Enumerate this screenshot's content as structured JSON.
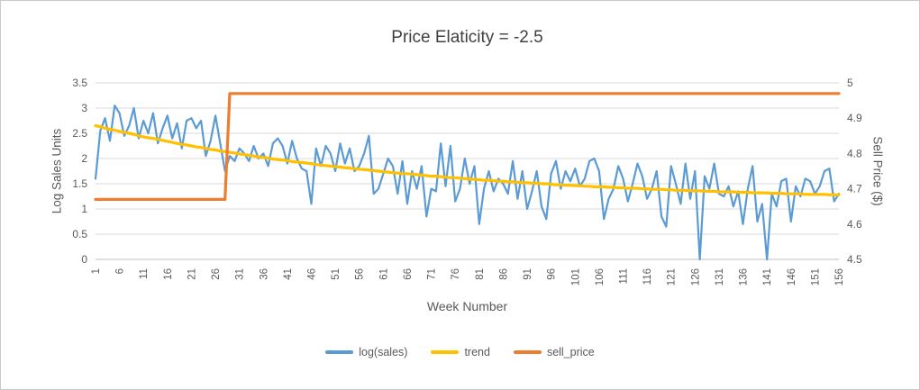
{
  "chart_data": {
    "type": "line",
    "title": "Price Elaticity = -2.5",
    "xlabel": "Week Number",
    "ylabel_left": "Log Sales Units",
    "ylabel_right": "Sell Price ($)",
    "x_start": 1,
    "x_step": 1,
    "n_points": 156,
    "grid": true,
    "legend_position": "bottom",
    "y_left_range": [
      0,
      3.5
    ],
    "y_right_range": [
      4.5,
      5
    ],
    "y_left_ticks": [
      0,
      0.5,
      1,
      1.5,
      2,
      2.5,
      3,
      3.5
    ],
    "y_right_ticks": [
      4.5,
      4.6,
      4.7,
      4.8,
      4.9,
      5
    ],
    "x_ticks": [
      1,
      6,
      11,
      16,
      21,
      26,
      31,
      36,
      41,
      46,
      51,
      56,
      61,
      66,
      71,
      76,
      81,
      86,
      91,
      96,
      101,
      106,
      111,
      116,
      121,
      126,
      131,
      136,
      141,
      146,
      151,
      156
    ],
    "series": [
      {
        "name": "log(sales)",
        "axis": "left",
        "color": "#5B9BD5",
        "values": [
          1.6,
          2.55,
          2.8,
          2.35,
          3.05,
          2.9,
          2.45,
          2.65,
          3.0,
          2.4,
          2.75,
          2.5,
          2.9,
          2.3,
          2.6,
          2.85,
          2.4,
          2.7,
          2.2,
          2.75,
          2.8,
          2.6,
          2.75,
          2.05,
          2.35,
          2.85,
          2.3,
          1.75,
          2.05,
          1.95,
          2.2,
          2.1,
          1.95,
          2.25,
          2.0,
          2.1,
          1.85,
          2.3,
          2.4,
          2.25,
          1.9,
          2.35,
          2.0,
          1.8,
          1.75,
          1.1,
          2.2,
          1.85,
          2.25,
          2.1,
          1.75,
          2.3,
          1.9,
          2.2,
          1.75,
          1.85,
          2.1,
          2.45,
          1.3,
          1.4,
          1.7,
          2.0,
          1.85,
          1.3,
          1.95,
          1.1,
          1.75,
          1.4,
          1.85,
          0.85,
          1.4,
          1.35,
          2.3,
          1.45,
          2.25,
          1.15,
          1.4,
          2.0,
          1.5,
          1.85,
          0.7,
          1.4,
          1.75,
          1.35,
          1.6,
          1.5,
          1.3,
          1.95,
          1.2,
          1.75,
          1.0,
          1.35,
          1.75,
          1.05,
          0.8,
          1.7,
          1.95,
          1.4,
          1.75,
          1.55,
          1.8,
          1.45,
          1.6,
          1.95,
          2.0,
          1.75,
          0.8,
          1.2,
          1.4,
          1.85,
          1.6,
          1.15,
          1.5,
          1.9,
          1.65,
          1.2,
          1.4,
          1.75,
          0.85,
          0.65,
          1.85,
          1.5,
          1.1,
          1.9,
          1.2,
          1.75,
          0.0,
          1.65,
          1.4,
          1.9,
          1.3,
          1.25,
          1.45,
          1.05,
          1.35,
          0.7,
          1.4,
          1.85,
          0.75,
          1.1,
          0.0,
          1.3,
          1.05,
          1.55,
          1.6,
          0.75,
          1.45,
          1.25,
          1.6,
          1.55,
          1.3,
          1.45,
          1.75,
          1.8,
          1.15,
          1.3
        ]
      },
      {
        "name": "trend",
        "axis": "left",
        "color": "#FFC000",
        "values": [
          2.65,
          2.63,
          2.6,
          2.58,
          2.56,
          2.54,
          2.52,
          2.5,
          2.48,
          2.45,
          2.43,
          2.41,
          2.4,
          2.38,
          2.36,
          2.34,
          2.32,
          2.3,
          2.28,
          2.27,
          2.25,
          2.23,
          2.22,
          2.2,
          2.18,
          2.17,
          2.15,
          2.14,
          2.12,
          2.11,
          2.09,
          2.08,
          2.06,
          2.05,
          2.03,
          2.02,
          2.01,
          1.99,
          1.98,
          1.97,
          1.96,
          1.94,
          1.93,
          1.92,
          1.91,
          1.9,
          1.88,
          1.87,
          1.86,
          1.85,
          1.84,
          1.83,
          1.82,
          1.81,
          1.8,
          1.79,
          1.78,
          1.77,
          1.76,
          1.75,
          1.74,
          1.73,
          1.72,
          1.71,
          1.7,
          1.7,
          1.69,
          1.68,
          1.67,
          1.66,
          1.65,
          1.65,
          1.64,
          1.63,
          1.62,
          1.62,
          1.61,
          1.6,
          1.59,
          1.59,
          1.58,
          1.57,
          1.57,
          1.56,
          1.55,
          1.55,
          1.54,
          1.54,
          1.53,
          1.52,
          1.52,
          1.51,
          1.51,
          1.5,
          1.5,
          1.49,
          1.48,
          1.48,
          1.47,
          1.47,
          1.46,
          1.46,
          1.45,
          1.45,
          1.44,
          1.44,
          1.44,
          1.43,
          1.43,
          1.42,
          1.42,
          1.41,
          1.41,
          1.41,
          1.4,
          1.4,
          1.39,
          1.39,
          1.39,
          1.38,
          1.38,
          1.37,
          1.37,
          1.37,
          1.36,
          1.36,
          1.36,
          1.35,
          1.35,
          1.35,
          1.34,
          1.34,
          1.34,
          1.34,
          1.33,
          1.33,
          1.33,
          1.32,
          1.32,
          1.32,
          1.32,
          1.31,
          1.31,
          1.31,
          1.3,
          1.3,
          1.3,
          1.3,
          1.29,
          1.29,
          1.29,
          1.29,
          1.29,
          1.28,
          1.28,
          1.28
        ]
      },
      {
        "name": "sell_price",
        "axis": "right",
        "color": "#ED7D31",
        "values": [
          4.67,
          4.67,
          4.67,
          4.67,
          4.67,
          4.67,
          4.67,
          4.67,
          4.67,
          4.67,
          4.67,
          4.67,
          4.67,
          4.67,
          4.67,
          4.67,
          4.67,
          4.67,
          4.67,
          4.67,
          4.67,
          4.67,
          4.67,
          4.67,
          4.67,
          4.67,
          4.67,
          4.67,
          4.97,
          4.97,
          4.97,
          4.97,
          4.97,
          4.97,
          4.97,
          4.97,
          4.97,
          4.97,
          4.97,
          4.97,
          4.97,
          4.97,
          4.97,
          4.97,
          4.97,
          4.97,
          4.97,
          4.97,
          4.97,
          4.97,
          4.97,
          4.97,
          4.97,
          4.97,
          4.97,
          4.97,
          4.97,
          4.97,
          4.97,
          4.97,
          4.97,
          4.97,
          4.97,
          4.97,
          4.97,
          4.97,
          4.97,
          4.97,
          4.97,
          4.97,
          4.97,
          4.97,
          4.97,
          4.97,
          4.97,
          4.97,
          4.97,
          4.97,
          4.97,
          4.97,
          4.97,
          4.97,
          4.97,
          4.97,
          4.97,
          4.97,
          4.97,
          4.97,
          4.97,
          4.97,
          4.97,
          4.97,
          4.97,
          4.97,
          4.97,
          4.97,
          4.97,
          4.97,
          4.97,
          4.97,
          4.97,
          4.97,
          4.97,
          4.97,
          4.97,
          4.97,
          4.97,
          4.97,
          4.97,
          4.97,
          4.97,
          4.97,
          4.97,
          4.97,
          4.97,
          4.97,
          4.97,
          4.97,
          4.97,
          4.97,
          4.97,
          4.97,
          4.97,
          4.97,
          4.97,
          4.97,
          4.97,
          4.97,
          4.97,
          4.97,
          4.97,
          4.97,
          4.97,
          4.97,
          4.97,
          4.97,
          4.97,
          4.97,
          4.97,
          4.97,
          4.97,
          4.97,
          4.97,
          4.97,
          4.97,
          4.97,
          4.97,
          4.97,
          4.97,
          4.97,
          4.97,
          4.97,
          4.97,
          4.97,
          4.97,
          4.97
        ]
      }
    ]
  }
}
